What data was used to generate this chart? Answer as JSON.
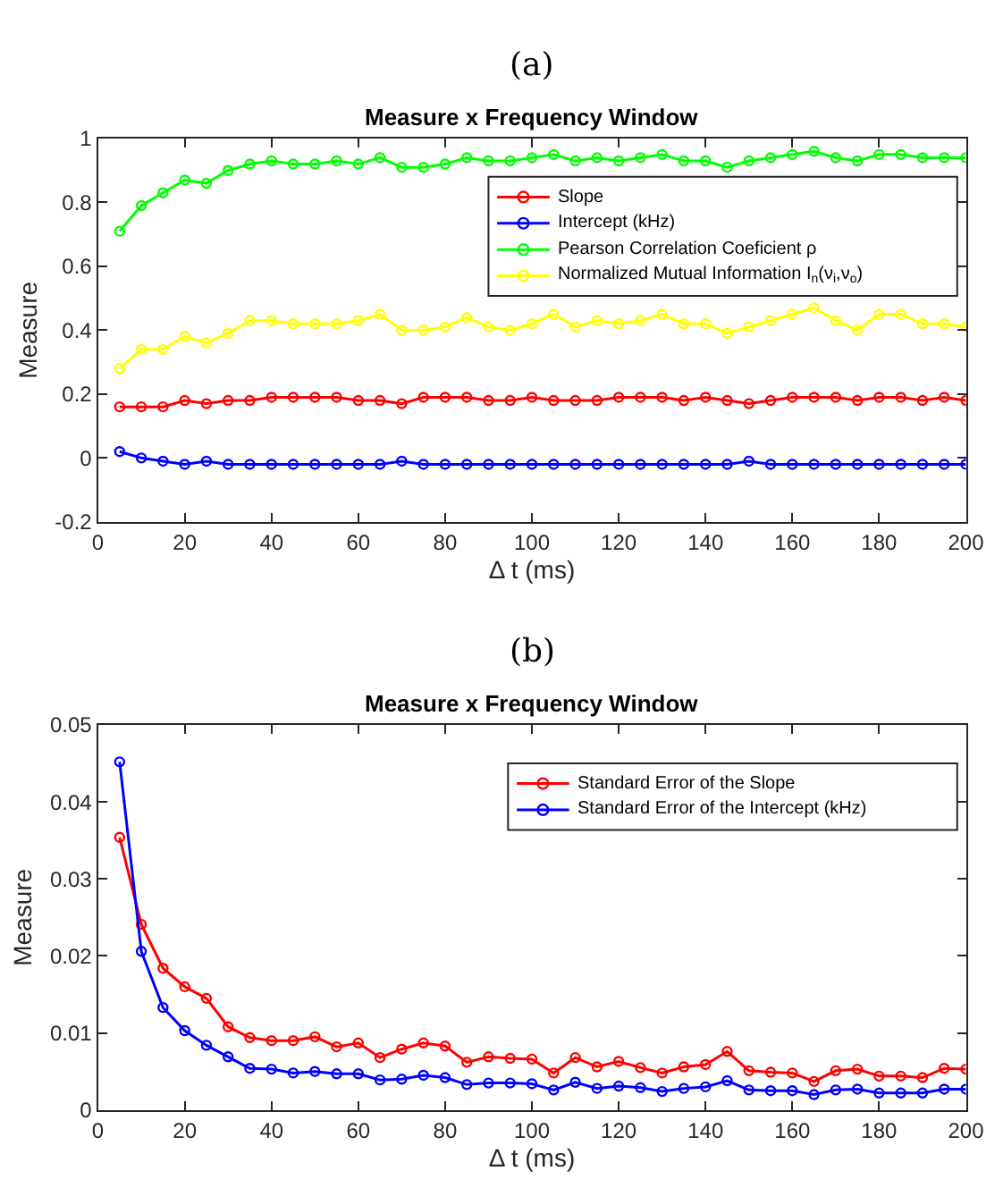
{
  "chart_data": [
    {
      "type": "line",
      "title": "Measure x Frequency Window",
      "xlabel": "Δ t (ms)",
      "ylabel": "Measure",
      "annotations": [
        "(a)"
      ],
      "x": [
        5,
        10,
        15,
        20,
        25,
        30,
        35,
        40,
        45,
        50,
        55,
        60,
        65,
        70,
        75,
        80,
        85,
        90,
        95,
        100,
        105,
        110,
        115,
        120,
        125,
        130,
        135,
        140,
        145,
        150,
        155,
        160,
        165,
        170,
        175,
        180,
        185,
        190,
        195,
        200
      ],
      "series": [
        {
          "name": "Slope",
          "color": "#ff0000",
          "values": [
            0.16,
            0.16,
            0.16,
            0.18,
            0.17,
            0.18,
            0.18,
            0.19,
            0.19,
            0.19,
            0.19,
            0.18,
            0.18,
            0.17,
            0.19,
            0.19,
            0.19,
            0.18,
            0.18,
            0.19,
            0.18,
            0.18,
            0.18,
            0.19,
            0.19,
            0.19,
            0.18,
            0.19,
            0.18,
            0.17,
            0.18,
            0.19,
            0.19,
            0.19,
            0.18,
            0.19,
            0.19,
            0.18,
            0.19,
            0.18
          ]
        },
        {
          "name": "Intercept (kHz)",
          "color": "#0000ff",
          "values": [
            0.02,
            0.0,
            -0.01,
            -0.02,
            -0.01,
            -0.02,
            -0.02,
            -0.02,
            -0.02,
            -0.02,
            -0.02,
            -0.02,
            -0.02,
            -0.01,
            -0.02,
            -0.02,
            -0.02,
            -0.02,
            -0.02,
            -0.02,
            -0.02,
            -0.02,
            -0.02,
            -0.02,
            -0.02,
            -0.02,
            -0.02,
            -0.02,
            -0.02,
            -0.01,
            -0.02,
            -0.02,
            -0.02,
            -0.02,
            -0.02,
            -0.02,
            -0.02,
            -0.02,
            -0.02,
            -0.02
          ]
        },
        {
          "name": "Pearson Correlation Coeficient ρ",
          "color": "#00ff00",
          "values": [
            0.71,
            0.79,
            0.83,
            0.87,
            0.86,
            0.9,
            0.92,
            0.93,
            0.92,
            0.92,
            0.93,
            0.92,
            0.94,
            0.91,
            0.91,
            0.92,
            0.94,
            0.93,
            0.93,
            0.94,
            0.95,
            0.93,
            0.94,
            0.93,
            0.94,
            0.95,
            0.93,
            0.93,
            0.91,
            0.93,
            0.94,
            0.95,
            0.96,
            0.94,
            0.93,
            0.95,
            0.95,
            0.94,
            0.94,
            0.94
          ]
        },
        {
          "name": "Normalized Mutual Information I$_{n}$(ν$_{i}$,ν$_{o}$)",
          "color": "#ffff00",
          "values": [
            0.28,
            0.34,
            0.34,
            0.38,
            0.36,
            0.39,
            0.43,
            0.43,
            0.42,
            0.42,
            0.42,
            0.43,
            0.45,
            0.4,
            0.4,
            0.41,
            0.44,
            0.41,
            0.4,
            0.42,
            0.45,
            0.41,
            0.43,
            0.42,
            0.43,
            0.45,
            0.42,
            0.42,
            0.39,
            0.41,
            0.43,
            0.45,
            0.47,
            0.43,
            0.4,
            0.45,
            0.45,
            0.42,
            0.42,
            0.41
          ]
        }
      ],
      "xlim": [
        0,
        200
      ],
      "xticks": [
        0,
        20,
        40,
        60,
        80,
        100,
        120,
        140,
        160,
        180,
        200
      ],
      "ylim": [
        -0.2,
        1
      ],
      "yticks": [
        -0.2,
        0,
        0.2,
        0.4,
        0.6,
        0.8,
        1
      ],
      "legend": "top right",
      "marker": "circle",
      "line_style": "solid"
    },
    {
      "type": "line",
      "title": "Measure x Frequency Window",
      "xlabel": "Δ t (ms)",
      "ylabel": "Measure",
      "annotations": [
        "(b)"
      ],
      "x": [
        5,
        10,
        15,
        20,
        25,
        30,
        35,
        40,
        45,
        50,
        55,
        60,
        65,
        70,
        75,
        80,
        85,
        90,
        95,
        100,
        105,
        110,
        115,
        120,
        125,
        130,
        135,
        140,
        145,
        150,
        155,
        160,
        165,
        170,
        175,
        180,
        185,
        190,
        195,
        200
      ],
      "series": [
        {
          "name": "Standard Error of the Slope",
          "color": "#ff0000",
          "values": [
            0.0354,
            0.0241,
            0.0184,
            0.016,
            0.0145,
            0.0108,
            0.0094,
            0.009,
            0.009,
            0.0095,
            0.0082,
            0.0087,
            0.0068,
            0.0079,
            0.0087,
            0.0083,
            0.0062,
            0.0069,
            0.0067,
            0.0066,
            0.0048,
            0.0068,
            0.0056,
            0.0063,
            0.0055,
            0.0048,
            0.0056,
            0.0059,
            0.0076,
            0.0051,
            0.0049,
            0.0048,
            0.0037,
            0.0051,
            0.0053,
            0.0044,
            0.0044,
            0.0042,
            0.0054,
            0.0053
          ]
        },
        {
          "name": "Standard Error of the Intercept (kHz)",
          "color": "#0000ff",
          "values": [
            0.0452,
            0.0206,
            0.0133,
            0.0103,
            0.0084,
            0.0069,
            0.0054,
            0.0053,
            0.0048,
            0.005,
            0.0047,
            0.0047,
            0.0039,
            0.004,
            0.0045,
            0.0042,
            0.0033,
            0.0035,
            0.0035,
            0.0034,
            0.0026,
            0.0036,
            0.0028,
            0.0031,
            0.0029,
            0.0024,
            0.0028,
            0.003,
            0.0038,
            0.0026,
            0.0025,
            0.0025,
            0.002,
            0.0026,
            0.0027,
            0.0022,
            0.0022,
            0.0022,
            0.0027,
            0.0027
          ]
        }
      ],
      "xlim": [
        0,
        200
      ],
      "xticks": [
        0,
        20,
        40,
        60,
        80,
        100,
        120,
        140,
        160,
        180,
        200
      ],
      "ylim": [
        0,
        0.05
      ],
      "yticks": [
        0,
        0.01,
        0.02,
        0.03,
        0.04,
        0.05
      ],
      "legend": "top right",
      "marker": "circle",
      "line_style": "solid"
    }
  ]
}
